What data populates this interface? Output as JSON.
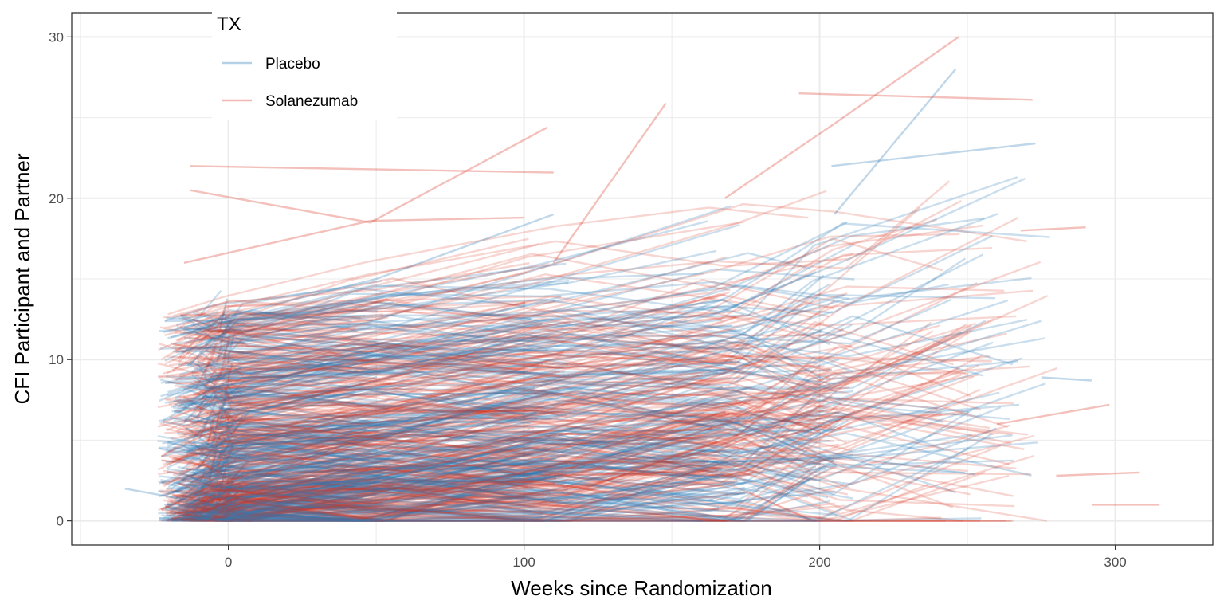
{
  "chart_data": {
    "type": "line",
    "title": "",
    "xlabel": "Weeks since Randomization",
    "ylabel": "CFI Participant and Partner",
    "xlim": [
      -53,
      333
    ],
    "ylim": [
      -1.5,
      31.5
    ],
    "x_ticks": [
      0,
      100,
      200,
      300
    ],
    "y_ticks": [
      0,
      10,
      20,
      30
    ],
    "grid": true,
    "legend": {
      "title": "TX",
      "position": "top-left",
      "entries": [
        {
          "name": "Placebo",
          "color": "#2c7bb6"
        },
        {
          "name": "Solanezumab",
          "color": "#d7301f"
        }
      ]
    },
    "series": [
      {
        "name": "Placebo",
        "color": "#2c7bb6",
        "opacity": 0.25,
        "n_trajectories": 420
      },
      {
        "name": "Solanezumab",
        "color": "#d7301f",
        "opacity": 0.2,
        "n_trajectories": 420
      }
    ],
    "highlighted_trajectories": [
      {
        "group": "Solanezumab",
        "x": [
          -13,
          108,
          110
        ],
        "y": [
          22.0,
          21.6,
          21.6
        ]
      },
      {
        "group": "Solanezumab",
        "x": [
          193,
          272
        ],
        "y": [
          26.5,
          26.1
        ]
      },
      {
        "group": "Solanezumab",
        "x": [
          -13,
          48,
          108
        ],
        "y": [
          20.5,
          18.5,
          24.4
        ]
      },
      {
        "group": "Solanezumab",
        "x": [
          110,
          148
        ],
        "y": [
          16.0,
          25.9
        ]
      },
      {
        "group": "Solanezumab",
        "x": [
          168,
          204,
          247
        ],
        "y": [
          20.0,
          24.5,
          30.0
        ]
      },
      {
        "group": "Placebo",
        "x": [
          205,
          246
        ],
        "y": [
          19.0,
          28.0
        ]
      },
      {
        "group": "Placebo",
        "x": [
          204,
          273
        ],
        "y": [
          22.0,
          23.4
        ]
      },
      {
        "group": "Placebo",
        "x": [
          -15,
          50,
          110
        ],
        "y": [
          12.0,
          15.0,
          19.0
        ]
      },
      {
        "group": "Solanezumab",
        "x": [
          -15,
          48,
          100
        ],
        "y": [
          16.0,
          18.6,
          18.8
        ]
      },
      {
        "group": "Placebo",
        "x": [
          -35,
          -5
        ],
        "y": [
          2.0,
          1.0
        ]
      },
      {
        "group": "Solanezumab",
        "x": [
          292,
          315
        ],
        "y": [
          1.0,
          1.0
        ]
      },
      {
        "group": "Solanezumab",
        "x": [
          280,
          308
        ],
        "y": [
          2.8,
          3.0
        ]
      },
      {
        "group": "Placebo",
        "x": [
          275,
          292
        ],
        "y": [
          8.9,
          8.7
        ]
      },
      {
        "group": "Solanezumab",
        "x": [
          260,
          298
        ],
        "y": [
          6.0,
          7.2
        ]
      },
      {
        "group": "Solanezumab",
        "x": [
          268,
          290
        ],
        "y": [
          18.0,
          18.2
        ]
      }
    ]
  }
}
